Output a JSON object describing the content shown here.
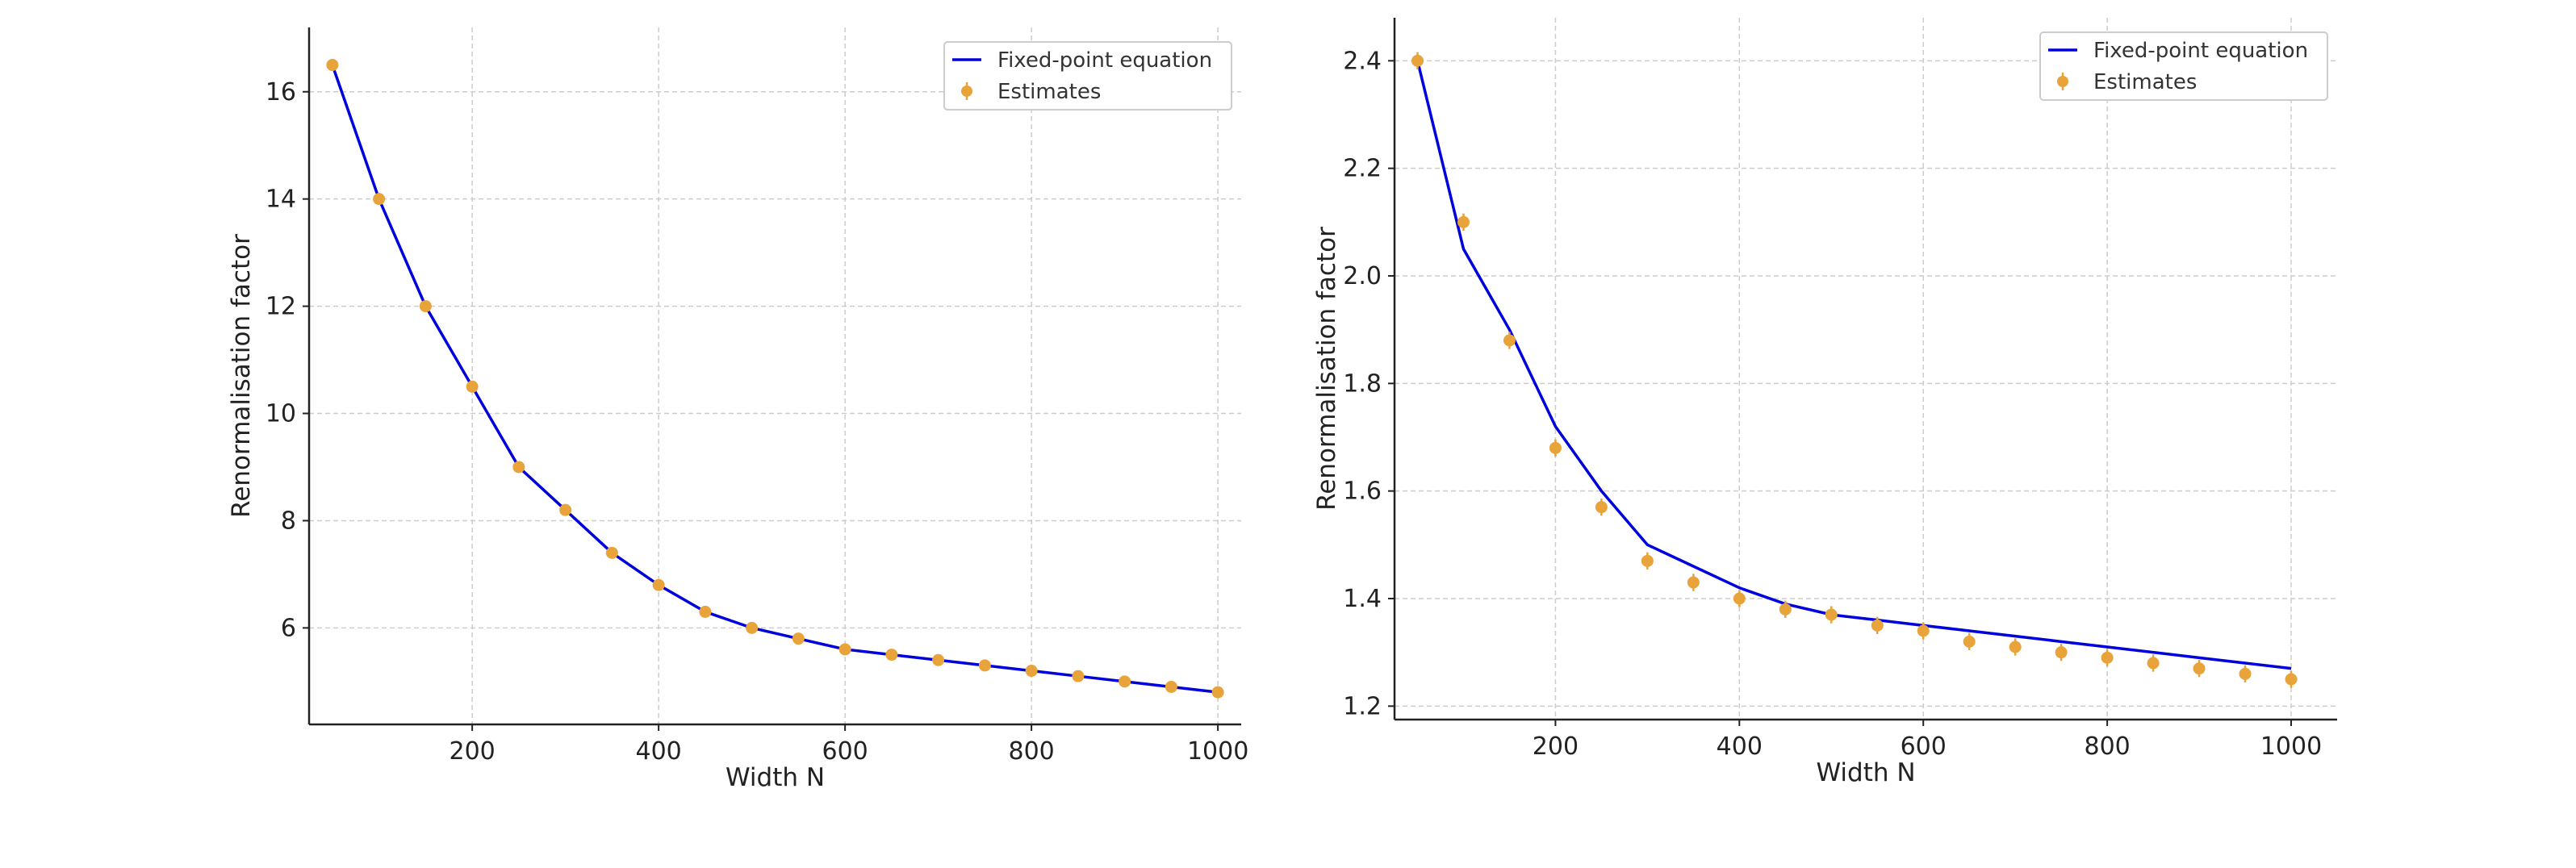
{
  "colors": {
    "line": "#0000dd",
    "points": "#e8a33a",
    "grid": "#cccccc",
    "axis": "#222222"
  },
  "chart_data": [
    {
      "type": "line",
      "title": "",
      "xlabel": "Width N",
      "ylabel": "Renormalisation factor",
      "xlim": [
        25,
        1025
      ],
      "ylim": [
        4.2,
        17.2
      ],
      "xticks": [
        200,
        400,
        600,
        800,
        1000
      ],
      "xtick_labels": [
        "200",
        "400",
        "600",
        "800",
        "1000"
      ],
      "yticks": [
        6,
        8,
        10,
        12,
        14,
        16
      ],
      "ytick_labels": [
        "6",
        "8",
        "10",
        "12",
        "14",
        "16"
      ],
      "grid": true,
      "legend": {
        "placement": "top-right",
        "entries": [
          "Fixed-point equation",
          "Estimates"
        ]
      },
      "series": [
        {
          "name": "Fixed-point equation",
          "kind": "line",
          "x": [
            50,
            100,
            150,
            200,
            250,
            300,
            350,
            400,
            450,
            500,
            550,
            600,
            650,
            700,
            750,
            800,
            850,
            900,
            950,
            1000
          ],
          "y": [
            16.5,
            14.0,
            12.0,
            10.5,
            9.0,
            8.2,
            7.4,
            6.8,
            6.3,
            6.0,
            5.8,
            5.6,
            5.5,
            5.4,
            5.3,
            5.2,
            5.1,
            5.0,
            4.9,
            4.8
          ]
        },
        {
          "name": "Estimates",
          "kind": "errorbar",
          "x": [
            50,
            100,
            150,
            200,
            250,
            300,
            350,
            400,
            450,
            500,
            550,
            600,
            650,
            700,
            750,
            800,
            850,
            900,
            950,
            1000
          ],
          "y": [
            16.5,
            14.0,
            12.0,
            10.5,
            9.0,
            8.2,
            7.4,
            6.8,
            6.3,
            6.0,
            5.8,
            5.6,
            5.5,
            5.4,
            5.3,
            5.2,
            5.1,
            5.0,
            4.9,
            4.8
          ],
          "err": [
            0.05,
            0.05,
            0.05,
            0.05,
            0.05,
            0.05,
            0.05,
            0.05,
            0.05,
            0.05,
            0.05,
            0.05,
            0.05,
            0.05,
            0.05,
            0.05,
            0.05,
            0.05,
            0.05,
            0.05
          ]
        }
      ]
    },
    {
      "type": "line",
      "title": "",
      "xlabel": "Width N",
      "ylabel": "Renormalisation factor",
      "xlim": [
        25,
        1050
      ],
      "ylim": [
        1.175,
        2.48
      ],
      "xticks": [
        200,
        400,
        600,
        800,
        1000
      ],
      "xtick_labels": [
        "200",
        "400",
        "600",
        "800",
        "1000"
      ],
      "yticks": [
        1.2,
        1.4,
        1.6,
        1.8,
        2.0,
        2.2,
        2.4
      ],
      "ytick_labels": [
        "1.2",
        "1.4",
        "1.6",
        "1.8",
        "2.0",
        "2.2",
        "2.4"
      ],
      "grid": true,
      "legend": {
        "placement": "top-right",
        "entries": [
          "Fixed-point equation",
          "Estimates"
        ]
      },
      "series": [
        {
          "name": "Fixed-point equation",
          "kind": "line",
          "x": [
            50,
            100,
            150,
            200,
            250,
            300,
            350,
            400,
            450,
            500,
            550,
            600,
            650,
            700,
            750,
            800,
            850,
            900,
            950,
            1000
          ],
          "y": [
            2.4,
            2.05,
            1.9,
            1.72,
            1.6,
            1.5,
            1.46,
            1.42,
            1.39,
            1.37,
            1.36,
            1.35,
            1.34,
            1.33,
            1.32,
            1.31,
            1.3,
            1.29,
            1.28,
            1.27
          ]
        },
        {
          "name": "Estimates",
          "kind": "errorbar",
          "x": [
            50,
            100,
            150,
            200,
            250,
            300,
            350,
            400,
            450,
            500,
            550,
            600,
            650,
            700,
            750,
            800,
            850,
            900,
            950,
            1000
          ],
          "y": [
            2.4,
            2.1,
            1.88,
            1.68,
            1.57,
            1.47,
            1.43,
            1.4,
            1.38,
            1.37,
            1.35,
            1.34,
            1.32,
            1.31,
            1.3,
            1.29,
            1.28,
            1.27,
            1.26,
            1.25
          ],
          "err": [
            0.016,
            0.016,
            0.016,
            0.016,
            0.016,
            0.016,
            0.016,
            0.016,
            0.016,
            0.016,
            0.016,
            0.016,
            0.016,
            0.016,
            0.016,
            0.016,
            0.016,
            0.016,
            0.016,
            0.016
          ]
        }
      ]
    }
  ]
}
